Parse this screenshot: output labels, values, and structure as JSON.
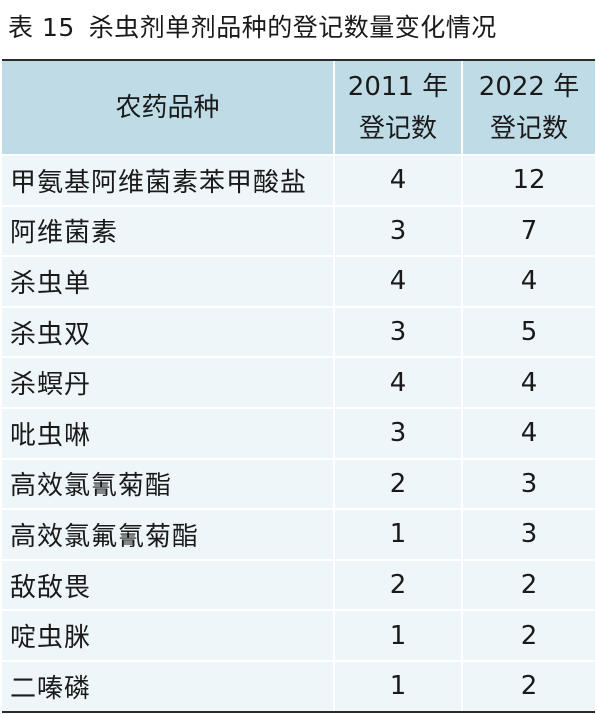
{
  "caption": {
    "label": "表 15",
    "title": "杀虫剂单剂品种的登记数量变化情况"
  },
  "table": {
    "headers": {
      "name": "农药品种",
      "col2_line1": "2011 年",
      "col2_line2": "登记数",
      "col3_line1": "2022 年",
      "col3_line2": "登记数"
    },
    "rows": [
      {
        "name": "甲氨基阿维菌素苯甲酸盐",
        "y2011": "4",
        "y2022": "12"
      },
      {
        "name": "阿维菌素",
        "y2011": "3",
        "y2022": "7"
      },
      {
        "name": "杀虫单",
        "y2011": "4",
        "y2022": "4"
      },
      {
        "name": "杀虫双",
        "y2011": "3",
        "y2022": "5"
      },
      {
        "name": "杀螟丹",
        "y2011": "4",
        "y2022": "4"
      },
      {
        "name": "吡虫啉",
        "y2011": "3",
        "y2022": "4"
      },
      {
        "name": "高效氯氰菊酯",
        "y2011": "2",
        "y2022": "3"
      },
      {
        "name": "高效氯氟氰菊酯",
        "y2011": "1",
        "y2022": "3"
      },
      {
        "name": "敌敌畏",
        "y2011": "2",
        "y2022": "2"
      },
      {
        "name": "啶虫脒",
        "y2011": "1",
        "y2022": "2"
      },
      {
        "name": "二嗪磷",
        "y2011": "1",
        "y2022": "2"
      }
    ]
  },
  "colors": {
    "header_bg": "#bfdbe6",
    "body_bg": "#eef6f9",
    "rule": "#2b2b2b"
  }
}
